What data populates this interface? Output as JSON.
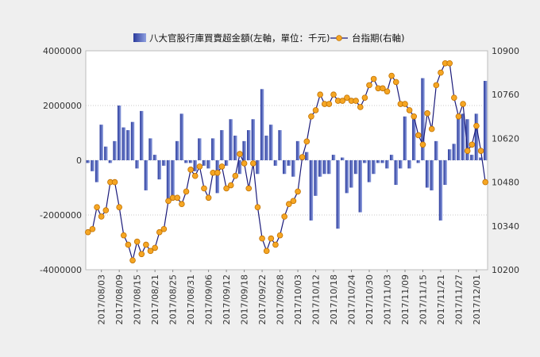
{
  "chart_data": {
    "type": "bar-line",
    "legend": {
      "placement": "top-center",
      "bar_label": "八大官股行庫買賣超金額(左軸，單位：千元)",
      "line_label": "台指期(右軸)"
    },
    "left_axis": {
      "min": -4000000,
      "max": 4000000,
      "ticks": [
        "4000000",
        "2000000",
        "0",
        "-2000000",
        "-4000000"
      ],
      "tick_values": [
        4000000,
        2000000,
        0,
        -2000000,
        -4000000
      ]
    },
    "right_axis": {
      "min": 10200,
      "max": 10900,
      "ticks": [
        "10900",
        "10760",
        "10620",
        "10480",
        "10340",
        "10200"
      ],
      "tick_values": [
        10900,
        10760,
        10620,
        10480,
        10340,
        10200
      ]
    },
    "x_tick_labels": [
      "2017/08/03",
      "2017/08/09",
      "2017/08/15",
      "2017/08/21",
      "2017/08/25",
      "2017/08/31",
      "2017/09/06",
      "2017/09/12",
      "2017/09/18",
      "2017/09/22",
      "2017/09/28",
      "2017/10/03",
      "2017/10/12",
      "2017/10/18",
      "2017/10/24",
      "2017/10/30",
      "2017/11/03",
      "2017/11/09",
      "2017/11/15",
      "2017/11/21",
      "2017/11/27",
      "2017/12/01"
    ],
    "x_tick_index": [
      3,
      7,
      11,
      15,
      19,
      23,
      27,
      31,
      35,
      39,
      43,
      47,
      51,
      55,
      59,
      63,
      67,
      71,
      75,
      79,
      83,
      87
    ],
    "grid": "horizontal dotted",
    "colors": {
      "bar_top": "#2a3a9c",
      "bar_bottom": "#8fa0e0",
      "line": "#1a1a7a",
      "marker": "#f5a623",
      "marker_edge": "#c07000"
    },
    "bars": [
      -100000,
      -400000,
      -800000,
      1300000,
      500000,
      -100000,
      700000,
      2000000,
      1200000,
      1100000,
      1400000,
      -300000,
      1800000,
      -1100000,
      800000,
      200000,
      -700000,
      -200000,
      -1500000,
      -1300000,
      700000,
      1700000,
      -100000,
      -100000,
      -400000,
      800000,
      -200000,
      -300000,
      800000,
      -1200000,
      1100000,
      -200000,
      1500000,
      900000,
      -500000,
      700000,
      1100000,
      1500000,
      -500000,
      2600000,
      900000,
      1300000,
      -200000,
      1100000,
      -500000,
      -200000,
      -600000,
      700000,
      100000,
      300000,
      -2200000,
      -1300000,
      -600000,
      -500000,
      -500000,
      200000,
      -2500000,
      100000,
      -1200000,
      -1000000,
      -500000,
      -1900000,
      -100000,
      -800000,
      -500000,
      -100000,
      -100000,
      -300000,
      200000,
      -900000,
      -300000,
      1600000,
      -300000,
      1500000,
      -100000,
      3000000,
      -1000000,
      -1100000,
      700000,
      -2200000,
      -900000,
      400000,
      600000,
      1700000,
      1700000,
      1500000,
      200000,
      1700000,
      100000,
      2900000
    ],
    "line": [
      10320,
      10330,
      10400,
      10370,
      10390,
      10480,
      10480,
      10400,
      10310,
      10280,
      10230,
      10290,
      10250,
      10280,
      10260,
      10270,
      10320,
      10330,
      10420,
      10430,
      10430,
      10410,
      10450,
      10520,
      10500,
      10530,
      10460,
      10430,
      10510,
      10510,
      10530,
      10460,
      10470,
      10500,
      10570,
      10540,
      10460,
      10540,
      10400,
      10300,
      10260,
      10300,
      10280,
      10310,
      10370,
      10410,
      10420,
      10450,
      10560,
      10610,
      10690,
      10710,
      10760,
      10730,
      10730,
      10760,
      10740,
      10740,
      10750,
      10740,
      10740,
      10720,
      10750,
      10790,
      10810,
      10780,
      10780,
      10770,
      10820,
      10800,
      10730,
      10730,
      10710,
      10690,
      10630,
      10600,
      10700,
      10650,
      10790,
      10830,
      10860,
      10860,
      10750,
      10690,
      10730,
      10580,
      10600,
      10660,
      10580,
      10480
    ]
  }
}
